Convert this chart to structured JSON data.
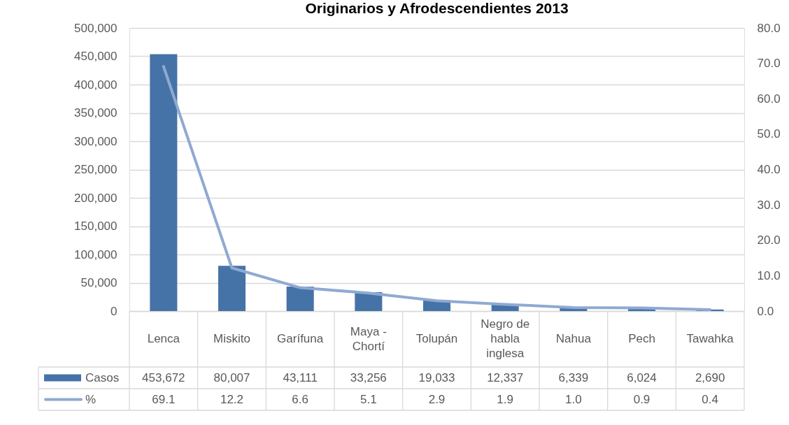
{
  "chart_data": {
    "type": "bar",
    "title": "Originarios y Afrodescendientes 2013",
    "categories": [
      "Lenca",
      "Miskito",
      "Garífuna",
      "Maya - Chortí",
      "Tolupán",
      "Negro de habla inglesa",
      "Nahua",
      "Pech",
      "Tawahka"
    ],
    "series": [
      {
        "name": "Casos",
        "color": "#4673A7",
        "values": [
          453672,
          80007,
          43111,
          33256,
          19033,
          12337,
          6339,
          6024,
          2690
        ],
        "value_labels": [
          "453,672",
          "80,007",
          "43,111",
          "33,256",
          "19,033",
          "12,337",
          "6,339",
          "6,024",
          "2,690"
        ]
      },
      {
        "name": "%",
        "type": "line",
        "axis": "y2",
        "color": "#8FAAD2",
        "values": [
          69.1,
          12.2,
          6.6,
          5.1,
          2.9,
          1.9,
          1.0,
          0.9,
          0.4
        ],
        "value_labels": [
          "69.1",
          "12.2",
          "6.6",
          "5.1",
          "2.9",
          "1.9",
          "1.0",
          "0.9",
          "0.4"
        ]
      }
    ],
    "ylim": [
      0,
      500000
    ],
    "yticks": [
      {
        "value": 0,
        "label": "0"
      },
      {
        "value": 50000,
        "label": "50,000"
      },
      {
        "value": 100000,
        "label": "100,000"
      },
      {
        "value": 150000,
        "label": "150,000"
      },
      {
        "value": 200000,
        "label": "200,000"
      },
      {
        "value": 250000,
        "label": "250,000"
      },
      {
        "value": 300000,
        "label": "300,000"
      },
      {
        "value": 350000,
        "label": "350,000"
      },
      {
        "value": 400000,
        "label": "400,000"
      },
      {
        "value": 450000,
        "label": "450,000"
      },
      {
        "value": 500000,
        "label": "500,000"
      }
    ],
    "y2lim": [
      0,
      80
    ],
    "y2ticks": [
      {
        "value": 0,
        "label": "0.0"
      },
      {
        "value": 10,
        "label": "10.0"
      },
      {
        "value": 20,
        "label": "20.0"
      },
      {
        "value": 30,
        "label": "30.0"
      },
      {
        "value": 40,
        "label": "40.0"
      },
      {
        "value": 50,
        "label": "50.0"
      },
      {
        "value": 60,
        "label": "60.0"
      },
      {
        "value": 70,
        "label": "70.0"
      },
      {
        "value": 80,
        "label": "80.0"
      }
    ],
    "grid": "y",
    "legend": "bottom left",
    "line_style": "solid"
  }
}
